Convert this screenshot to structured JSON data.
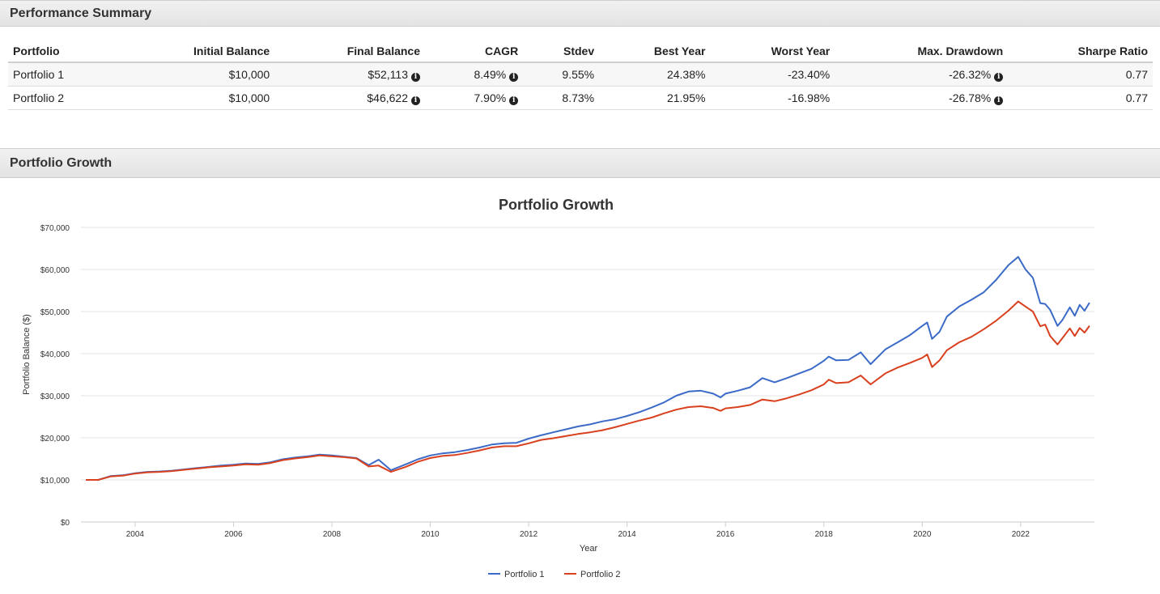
{
  "performance": {
    "title": "Performance Summary",
    "columns": [
      "Portfolio",
      "Initial Balance",
      "Final Balance",
      "CAGR",
      "Stdev",
      "Best Year",
      "Worst Year",
      "Max. Drawdown",
      "Sharpe Ratio"
    ],
    "rows": [
      {
        "name": "Portfolio 1",
        "initial": "$10,000",
        "final": "$52,113",
        "cagr": "8.49%",
        "stdev": "9.55%",
        "best": "24.38%",
        "worst": "-23.40%",
        "drawdown": "-26.32%",
        "sharpe": "0.77"
      },
      {
        "name": "Portfolio 2",
        "initial": "$10,000",
        "final": "$46,622",
        "cagr": "7.90%",
        "stdev": "8.73%",
        "best": "21.95%",
        "worst": "-16.98%",
        "drawdown": "-26.78%",
        "sharpe": "0.77"
      }
    ]
  },
  "growth_section": {
    "title": "Portfolio Growth"
  },
  "colors": {
    "portfolio1": "#3b6bc7",
    "portfolio2": "#d9401e",
    "grid": "#e6e6e6"
  },
  "chart_data": {
    "type": "line",
    "title": "Portfolio Growth",
    "xlabel": "Year",
    "ylabel": "Portfolio Balance ($)",
    "xlim": [
      2002.9,
      2023.5
    ],
    "ylim": [
      0,
      70000
    ],
    "xticks": [
      2004,
      2006,
      2008,
      2010,
      2012,
      2014,
      2016,
      2018,
      2020,
      2022
    ],
    "yticks": [
      0,
      10000,
      20000,
      30000,
      40000,
      50000,
      60000,
      70000
    ],
    "ytick_labels": [
      "$0",
      "$10,000",
      "$20,000",
      "$30,000",
      "$40,000",
      "$50,000",
      "$60,000",
      "$70,000"
    ],
    "legend_position": "bottom-center",
    "series": [
      {
        "name": "Portfolio 1",
        "color": "#3b6bc7",
        "points": [
          [
            2003.0,
            10000
          ],
          [
            2003.25,
            10000
          ],
          [
            2003.5,
            10900
          ],
          [
            2003.75,
            11100
          ],
          [
            2004.0,
            11600
          ],
          [
            2004.25,
            11900
          ],
          [
            2004.5,
            12000
          ],
          [
            2004.75,
            12200
          ],
          [
            2005.0,
            12500
          ],
          [
            2005.25,
            12800
          ],
          [
            2005.5,
            13100
          ],
          [
            2005.75,
            13400
          ],
          [
            2006.0,
            13600
          ],
          [
            2006.25,
            13900
          ],
          [
            2006.5,
            13800
          ],
          [
            2006.75,
            14200
          ],
          [
            2007.0,
            14900
          ],
          [
            2007.25,
            15300
          ],
          [
            2007.5,
            15600
          ],
          [
            2007.75,
            16000
          ],
          [
            2008.0,
            15800
          ],
          [
            2008.25,
            15500
          ],
          [
            2008.5,
            15200
          ],
          [
            2008.75,
            13500
          ],
          [
            2008.95,
            14800
          ],
          [
            2009.2,
            12300
          ],
          [
            2009.5,
            13700
          ],
          [
            2009.75,
            14900
          ],
          [
            2010.0,
            15800
          ],
          [
            2010.25,
            16300
          ],
          [
            2010.5,
            16600
          ],
          [
            2010.75,
            17100
          ],
          [
            2011.0,
            17700
          ],
          [
            2011.25,
            18400
          ],
          [
            2011.5,
            18700
          ],
          [
            2011.75,
            18800
          ],
          [
            2012.0,
            19800
          ],
          [
            2012.25,
            20600
          ],
          [
            2012.5,
            21300
          ],
          [
            2012.75,
            22000
          ],
          [
            2013.0,
            22700
          ],
          [
            2013.25,
            23200
          ],
          [
            2013.5,
            23900
          ],
          [
            2013.75,
            24400
          ],
          [
            2014.0,
            25200
          ],
          [
            2014.25,
            26100
          ],
          [
            2014.5,
            27200
          ],
          [
            2014.75,
            28400
          ],
          [
            2015.0,
            30000
          ],
          [
            2015.25,
            31000
          ],
          [
            2015.5,
            31200
          ],
          [
            2015.75,
            30500
          ],
          [
            2015.9,
            29600
          ],
          [
            2016.0,
            30500
          ],
          [
            2016.25,
            31200
          ],
          [
            2016.5,
            32000
          ],
          [
            2016.75,
            34200
          ],
          [
            2017.0,
            33200
          ],
          [
            2017.25,
            34200
          ],
          [
            2017.5,
            35300
          ],
          [
            2017.75,
            36400
          ],
          [
            2018.0,
            38300
          ],
          [
            2018.1,
            39300
          ],
          [
            2018.25,
            38400
          ],
          [
            2018.5,
            38500
          ],
          [
            2018.75,
            40300
          ],
          [
            2018.95,
            37500
          ],
          [
            2019.25,
            41000
          ],
          [
            2019.5,
            42700
          ],
          [
            2019.75,
            44400
          ],
          [
            2020.0,
            46600
          ],
          [
            2020.1,
            47400
          ],
          [
            2020.2,
            43500
          ],
          [
            2020.35,
            45200
          ],
          [
            2020.5,
            48800
          ],
          [
            2020.75,
            51200
          ],
          [
            2021.0,
            52800
          ],
          [
            2021.25,
            54600
          ],
          [
            2021.5,
            57500
          ],
          [
            2021.75,
            61000
          ],
          [
            2021.95,
            63000
          ],
          [
            2022.1,
            60000
          ],
          [
            2022.25,
            58000
          ],
          [
            2022.4,
            52000
          ],
          [
            2022.5,
            51800
          ],
          [
            2022.6,
            50400
          ],
          [
            2022.75,
            46600
          ],
          [
            2022.85,
            48000
          ],
          [
            2023.0,
            51000
          ],
          [
            2023.1,
            49000
          ],
          [
            2023.2,
            51600
          ],
          [
            2023.3,
            50200
          ],
          [
            2023.4,
            52113
          ]
        ]
      },
      {
        "name": "Portfolio 2",
        "color": "#d9401e",
        "points": [
          [
            2003.0,
            10000
          ],
          [
            2003.25,
            10000
          ],
          [
            2003.5,
            10800
          ],
          [
            2003.75,
            11000
          ],
          [
            2004.0,
            11500
          ],
          [
            2004.25,
            11800
          ],
          [
            2004.5,
            11900
          ],
          [
            2004.75,
            12100
          ],
          [
            2005.0,
            12400
          ],
          [
            2005.25,
            12700
          ],
          [
            2005.5,
            13000
          ],
          [
            2005.75,
            13200
          ],
          [
            2006.0,
            13400
          ],
          [
            2006.25,
            13700
          ],
          [
            2006.5,
            13600
          ],
          [
            2006.75,
            14000
          ],
          [
            2007.0,
            14700
          ],
          [
            2007.25,
            15100
          ],
          [
            2007.5,
            15400
          ],
          [
            2007.75,
            15800
          ],
          [
            2008.0,
            15600
          ],
          [
            2008.25,
            15400
          ],
          [
            2008.5,
            15100
          ],
          [
            2008.75,
            13200
          ],
          [
            2008.95,
            13400
          ],
          [
            2009.2,
            11900
          ],
          [
            2009.5,
            13100
          ],
          [
            2009.75,
            14300
          ],
          [
            2010.0,
            15200
          ],
          [
            2010.25,
            15700
          ],
          [
            2010.5,
            15900
          ],
          [
            2010.75,
            16400
          ],
          [
            2011.0,
            17000
          ],
          [
            2011.25,
            17700
          ],
          [
            2011.5,
            18000
          ],
          [
            2011.75,
            18000
          ],
          [
            2012.0,
            18700
          ],
          [
            2012.25,
            19500
          ],
          [
            2012.5,
            19900
          ],
          [
            2012.75,
            20400
          ],
          [
            2013.0,
            20900
          ],
          [
            2013.25,
            21300
          ],
          [
            2013.5,
            21800
          ],
          [
            2013.75,
            22500
          ],
          [
            2014.0,
            23300
          ],
          [
            2014.25,
            24100
          ],
          [
            2014.5,
            24800
          ],
          [
            2014.75,
            25800
          ],
          [
            2015.0,
            26700
          ],
          [
            2015.25,
            27300
          ],
          [
            2015.5,
            27500
          ],
          [
            2015.75,
            27100
          ],
          [
            2015.9,
            26400
          ],
          [
            2016.0,
            27000
          ],
          [
            2016.25,
            27300
          ],
          [
            2016.5,
            27800
          ],
          [
            2016.75,
            29100
          ],
          [
            2017.0,
            28700
          ],
          [
            2017.25,
            29400
          ],
          [
            2017.5,
            30300
          ],
          [
            2017.75,
            31300
          ],
          [
            2018.0,
            32700
          ],
          [
            2018.1,
            33800
          ],
          [
            2018.25,
            33000
          ],
          [
            2018.5,
            33200
          ],
          [
            2018.75,
            34800
          ],
          [
            2018.95,
            32700
          ],
          [
            2019.25,
            35300
          ],
          [
            2019.5,
            36700
          ],
          [
            2019.75,
            37800
          ],
          [
            2020.0,
            39000
          ],
          [
            2020.1,
            39800
          ],
          [
            2020.2,
            36800
          ],
          [
            2020.35,
            38400
          ],
          [
            2020.5,
            40800
          ],
          [
            2020.75,
            42700
          ],
          [
            2021.0,
            44000
          ],
          [
            2021.25,
            45800
          ],
          [
            2021.5,
            47800
          ],
          [
            2021.75,
            50200
          ],
          [
            2021.95,
            52400
          ],
          [
            2022.1,
            51200
          ],
          [
            2022.25,
            50000
          ],
          [
            2022.4,
            46500
          ],
          [
            2022.5,
            46900
          ],
          [
            2022.6,
            44200
          ],
          [
            2022.75,
            42200
          ],
          [
            2022.85,
            43700
          ],
          [
            2023.0,
            46000
          ],
          [
            2023.1,
            44200
          ],
          [
            2023.2,
            46100
          ],
          [
            2023.3,
            45000
          ],
          [
            2023.4,
            46622
          ]
        ]
      }
    ]
  }
}
